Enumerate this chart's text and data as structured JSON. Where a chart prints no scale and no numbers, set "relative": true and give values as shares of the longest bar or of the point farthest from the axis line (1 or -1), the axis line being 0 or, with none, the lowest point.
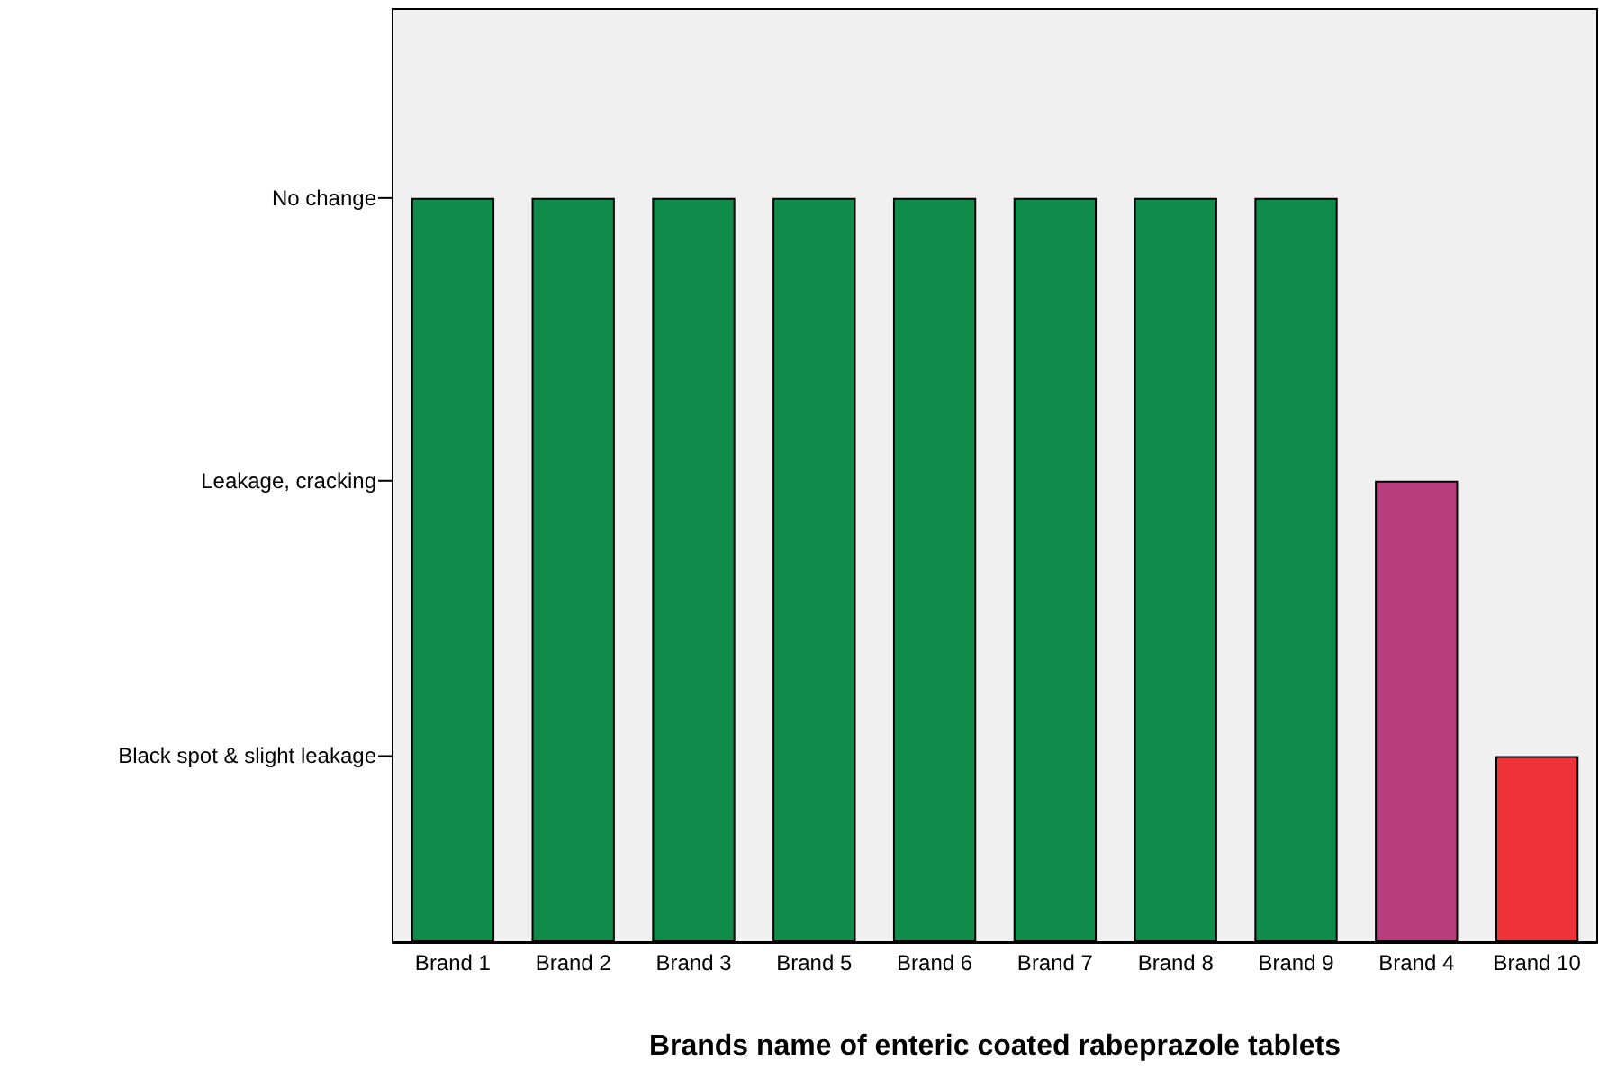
{
  "chart_data": {
    "type": "bar",
    "xlabel": "Brands name of enteric coated rabeprazole tablets",
    "categories": [
      "Brand 1",
      "Brand 2",
      "Brand 3",
      "Brand 5",
      "Brand 6",
      "Brand 7",
      "Brand 8",
      "Brand 9",
      "Brand 4",
      "Brand 10"
    ],
    "values": [
      1,
      1,
      1,
      1,
      1,
      1,
      1,
      1,
      0.62,
      0.25
    ],
    "colors": [
      "#0f8c4a",
      "#0f8c4a",
      "#0f8c4a",
      "#0f8c4a",
      "#0f8c4a",
      "#0f8c4a",
      "#0f8c4a",
      "#0f8c4a",
      "#b93e7e",
      "#ee3338"
    ],
    "relative": true,
    "annotations": [
      "No change",
      "Leakage, cracking",
      "Black spot & slight leakage"
    ]
  }
}
